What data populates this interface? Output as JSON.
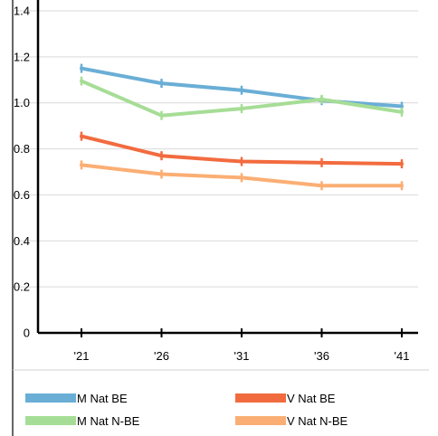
{
  "chart_data": {
    "type": "line",
    "categories": [
      "'21",
      "'26",
      "'31",
      "'36",
      "'41"
    ],
    "y_ticks": [
      "0",
      "0.2",
      "0.4",
      "0.6",
      "0.8",
      "1.0",
      "1.2",
      "1.4"
    ],
    "ylim": [
      0,
      1.4
    ],
    "grid": true,
    "legend_position": "bottom",
    "series": [
      {
        "name": "M Nat BE",
        "color": "#6aaed6",
        "values": [
          1.15,
          1.085,
          1.055,
          1.01,
          0.985
        ]
      },
      {
        "name": "M Nat N-BE",
        "color": "#a6dd96",
        "values": [
          1.095,
          0.945,
          0.975,
          1.015,
          0.96
        ]
      },
      {
        "name": "V Nat BE",
        "color": "#f26b3f",
        "values": [
          0.855,
          0.77,
          0.745,
          0.74,
          0.735
        ]
      },
      {
        "name": "V Nat N-BE",
        "color": "#fbae74",
        "values": [
          0.73,
          0.69,
          0.675,
          0.64,
          0.64
        ]
      }
    ]
  }
}
